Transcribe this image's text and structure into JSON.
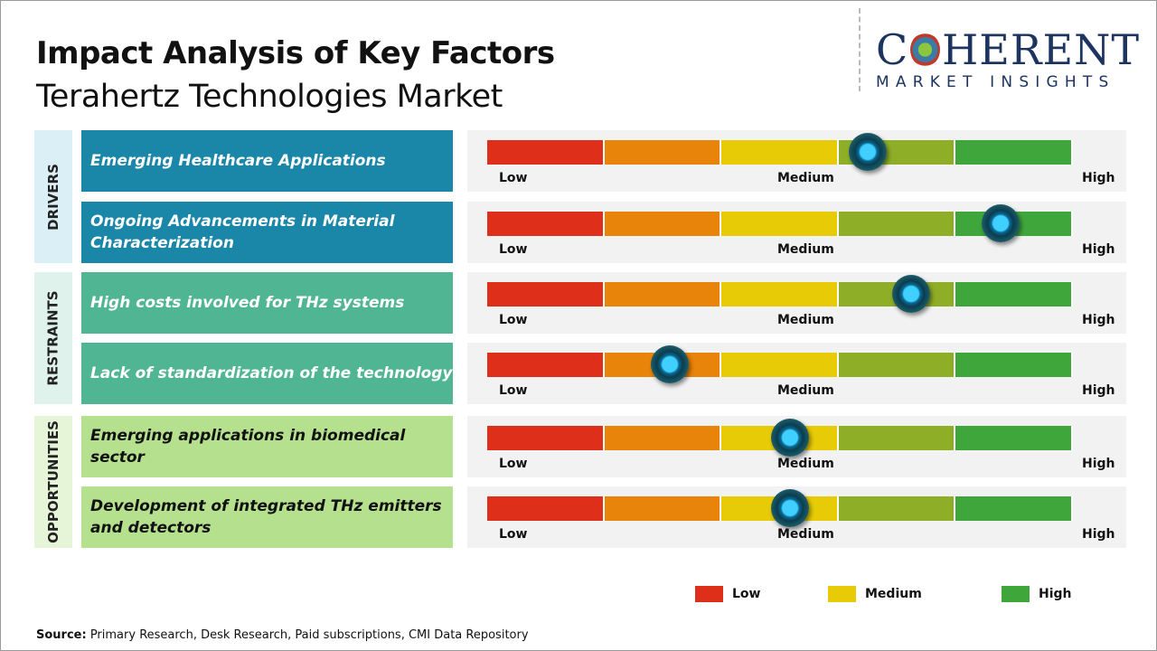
{
  "header": {
    "title": "Impact Analysis of Key Factors",
    "subtitle": "Terahertz Technologies Market"
  },
  "logo": {
    "main_left": "C",
    "main_right": "HERENT",
    "sub": "MARKET INSIGHTS"
  },
  "colors": {
    "seg": [
      "#de2f1a",
      "#e8840a",
      "#e6cb06",
      "#8fae27",
      "#3fa63c"
    ],
    "drivers": "#1a86a8",
    "drivers_bg": "#dbeff6",
    "restraints": "#4fb593",
    "restraints_bg": "#dff2ec",
    "opps": "#b5e08e",
    "opps_bg": "#e6f5d8"
  },
  "categories": [
    {
      "label": "DRIVERS",
      "factors": [
        {
          "text": "Emerging Healthcare  Applications",
          "impact": 0.65
        },
        {
          "text": "Ongoing  Advancements  in  Material Characterization",
          "impact": 0.877
        }
      ]
    },
    {
      "label": "RESTRAINTS",
      "factors": [
        {
          "text": "High costs involved for THz systems",
          "impact": 0.724
        },
        {
          "text": "Lack of standardization  of the technology",
          "impact": 0.312
        }
      ]
    },
    {
      "label": "OPPORTUNITIES",
      "factors": [
        {
          "text": "Emerging  applications  in biomedical sector",
          "impact": 0.517
        },
        {
          "text": "Development  of integrated  THz emitters and detectors",
          "impact": 0.517
        }
      ]
    }
  ],
  "scale": {
    "low": "Low",
    "medium": "Medium",
    "high": "High"
  },
  "legend": [
    {
      "label": "Low",
      "color": "#de2f1a"
    },
    {
      "label": "Medium",
      "color": "#e6cb06"
    },
    {
      "label": "High",
      "color": "#3fa63c"
    }
  ],
  "source": {
    "label": "Source:",
    "text": " Primary Research, Desk Research, Paid subscriptions, CMI Data Repository"
  }
}
